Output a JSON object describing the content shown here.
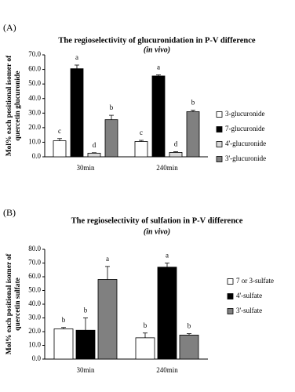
{
  "chart_data": [
    {
      "type": "bar",
      "panel_label": "(A)",
      "title": "The regioselectivity of glucuronidation in P-V difference",
      "subtitle": "(in vivo)",
      "y_label": [
        "Mol% each positional isomer of",
        "quercetin glucuronide"
      ],
      "categories": [
        "30min",
        "240min"
      ],
      "ylim": [
        0,
        70
      ],
      "yticks": [
        {
          "value": 0,
          "label": "0.0"
        },
        {
          "value": 10,
          "label": "10.0"
        },
        {
          "value": 20,
          "label": "20.0"
        },
        {
          "value": 30,
          "label": "30.0"
        },
        {
          "value": 40,
          "label": "40.0"
        },
        {
          "value": 50,
          "label": "50.0"
        },
        {
          "value": 60,
          "label": "60.0"
        },
        {
          "value": 70,
          "label": "70.0"
        }
      ],
      "series": [
        {
          "name": "3-glucuronide",
          "color": "#ffffff",
          "values": [
            11,
            10.5
          ],
          "errors": [
            1.5,
            0.8
          ],
          "letters": [
            "c",
            "c"
          ]
        },
        {
          "name": "7-glucuronide",
          "color": "#000000",
          "values": [
            60.5,
            55.5
          ],
          "errors": [
            2.5,
            0.8
          ],
          "letters": [
            "a",
            "a"
          ]
        },
        {
          "name": "4'-glucuronide",
          "color": "#d9d9d9",
          "values": [
            2.5,
            3
          ],
          "errors": [
            0.3,
            0.5
          ],
          "letters": [
            "d",
            "d"
          ]
        },
        {
          "name": "3'-glucuronide",
          "color": "#808080",
          "values": [
            25.5,
            31
          ],
          "errors": [
            3,
            1
          ],
          "letters": [
            "b",
            "b"
          ]
        }
      ]
    },
    {
      "type": "bar",
      "panel_label": "(B)",
      "title": "The regioselectivity of sulfation in P-V difference",
      "subtitle": "(in vivo)",
      "y_label": [
        "Mol% each positional isomer of",
        "quercetin sulfate"
      ],
      "categories": [
        "30min",
        "240min"
      ],
      "ylim": [
        0,
        80
      ],
      "yticks": [
        {
          "value": 0,
          "label": "0.0"
        },
        {
          "value": 10,
          "label": "10.0"
        },
        {
          "value": 20,
          "label": "20.0"
        },
        {
          "value": 30,
          "label": "30.0"
        },
        {
          "value": 40,
          "label": "40.0"
        },
        {
          "value": 50,
          "label": "50.0"
        },
        {
          "value": 60,
          "label": "60.0"
        },
        {
          "value": 70,
          "label": "70.0"
        },
        {
          "value": 80,
          "label": "80.0"
        }
      ],
      "series": [
        {
          "name": "7 or 3-sulfate",
          "color": "#ffffff",
          "values": [
            22,
            15.5
          ],
          "errors": [
            1,
            3.5
          ],
          "letters": [
            "b",
            "b"
          ]
        },
        {
          "name": "4'-sulfate",
          "color": "#000000",
          "values": [
            21,
            67
          ],
          "errors": [
            9,
            3
          ],
          "letters": [
            "b",
            "a"
          ]
        },
        {
          "name": "3'-sulfate",
          "color": "#808080",
          "values": [
            58,
            17.5
          ],
          "errors": [
            9.5,
            1
          ],
          "letters": [
            "a",
            "b"
          ]
        }
      ]
    }
  ]
}
